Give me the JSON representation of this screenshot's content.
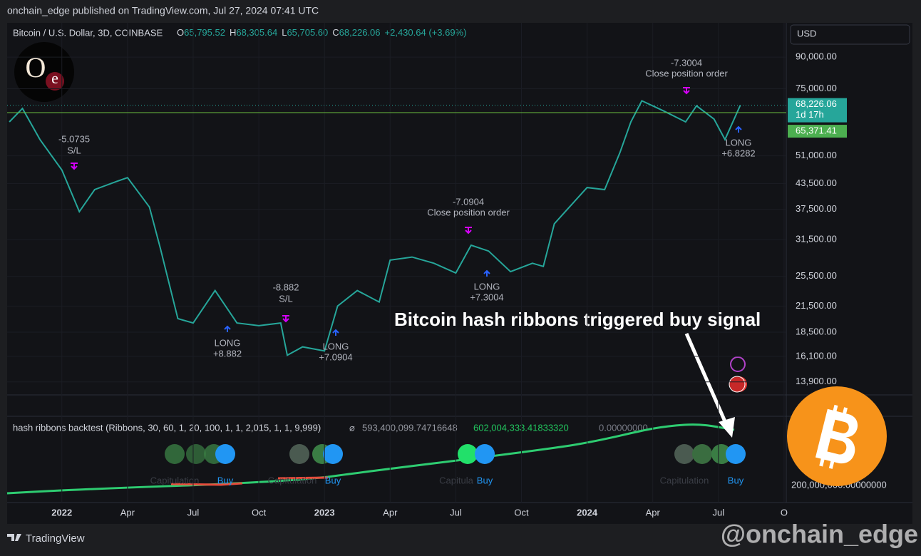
{
  "header": "onchain_edge published on TradingView.com, Jul 27, 2024 07:41 UTC",
  "legend": {
    "symbol": "Bitcoin / U.S. Dollar, 3D, COINBASE",
    "ohlc": [
      {
        "key": "O",
        "value": "65,795.52"
      },
      {
        "key": "H",
        "value": "68,305.64"
      },
      {
        "key": "L",
        "value": "65,705.60"
      },
      {
        "key": "C",
        "value": "68,226.06"
      }
    ],
    "change": "+2,430.64 (+3.69%)"
  },
  "logo": {
    "first": "O",
    "second": "e"
  },
  "chart_data": {
    "type": "line",
    "log_scale": true,
    "color": "#26a69a",
    "x": [
      -2.4,
      -1.8,
      -1,
      0,
      0.8,
      1.5,
      2.5,
      3,
      4,
      4.5,
      5.3,
      6,
      7,
      8,
      9,
      10,
      10.3,
      11,
      12,
      12.6,
      13.5,
      14.5,
      15,
      16,
      17,
      18,
      18.7,
      19.5,
      20.5,
      21.5,
      22,
      22.5,
      23,
      24,
      24.8,
      25.5,
      26,
      26.5,
      27.5,
      28.5,
      29,
      29.8,
      30.3,
      31
    ],
    "values": [
      62000,
      67000,
      56000,
      47000,
      37000,
      42000,
      44000,
      45000,
      38000,
      30000,
      20000,
      19500,
      23500,
      19500,
      19200,
      19500,
      16200,
      17000,
      16600,
      21500,
      23500,
      22000,
      28000,
      28500,
      27500,
      26000,
      30500,
      29500,
      26200,
      27500,
      27000,
      34500,
      37000,
      42500,
      42000,
      52000,
      62000,
      70000,
      66000,
      62000,
      68000,
      63000,
      56000,
      68200
    ],
    "xlim": [
      -2.5,
      33.1
    ],
    "xticks": [
      {
        "value": 0,
        "label": "2022"
      },
      {
        "value": 3,
        "label": "Apr"
      },
      {
        "value": 6,
        "label": "Jul"
      },
      {
        "value": 9,
        "label": "Oct"
      },
      {
        "value": 12,
        "label": "2023"
      },
      {
        "value": 15,
        "label": "Apr"
      },
      {
        "value": 18,
        "label": "Jul"
      },
      {
        "value": 21,
        "label": "Oct"
      },
      {
        "value": 24,
        "label": "2024"
      },
      {
        "value": 27,
        "label": "Apr"
      },
      {
        "value": 30,
        "label": "Jul"
      },
      {
        "value": 33,
        "label": "O"
      }
    ],
    "ylim": [
      12950,
      109600
    ],
    "yticks": [
      {
        "value": 90000,
        "label": "90,000.00"
      },
      {
        "value": 75000,
        "label": "75,000.00"
      },
      {
        "value": 51000,
        "label": "51,000.00"
      },
      {
        "value": 43500,
        "label": "43,500.00"
      },
      {
        "value": 37500,
        "label": "37,500.00"
      },
      {
        "value": 31500,
        "label": "31,500.00"
      },
      {
        "value": 25500,
        "label": "25,500.00"
      },
      {
        "value": 21500,
        "label": "21,500.00"
      },
      {
        "value": 18500,
        "label": "18,500.00"
      },
      {
        "value": 16100,
        "label": "16,100.00"
      },
      {
        "value": 13900,
        "label": "13,900.00"
      }
    ],
    "currency": "USD",
    "last_price": {
      "value": 68226.06,
      "label": "68,226.06"
    },
    "countdown": "1d 17h",
    "position_price": {
      "value": 65371.41,
      "label": "65,371.41"
    },
    "annotations": [
      "-5.0735",
      "S/L",
      "-8.882",
      "S/L",
      "LONG",
      "+8.882",
      "LONG",
      "+7.0904",
      "-7.0904",
      "Close position order",
      "LONG",
      "+7.3004",
      "-7.3004",
      "Close position order",
      "LONG",
      "+6.8282"
    ]
  },
  "indicator": {
    "title": "hash ribbons backtest (Ribbons, 30, 60, 1, 20, 100, 1, 1, 2,015, 1, 1, 9,999)",
    "avg_symbol": "⌀",
    "values": [
      "593,400,099.74716648",
      "602,004,333.41833320",
      "0.00000000"
    ],
    "axis_label": "200,000,000.00000000",
    "signal_labels": [
      "Capitulation",
      "Buy",
      "Capitulation",
      "Buy",
      "Capitula",
      "Buy",
      "Capitulation",
      "Buy"
    ]
  },
  "callout": "Bitcoin hash ribbons triggered buy signal",
  "footer": {
    "brand": "TradingView",
    "handle": "@onchain_edge"
  }
}
